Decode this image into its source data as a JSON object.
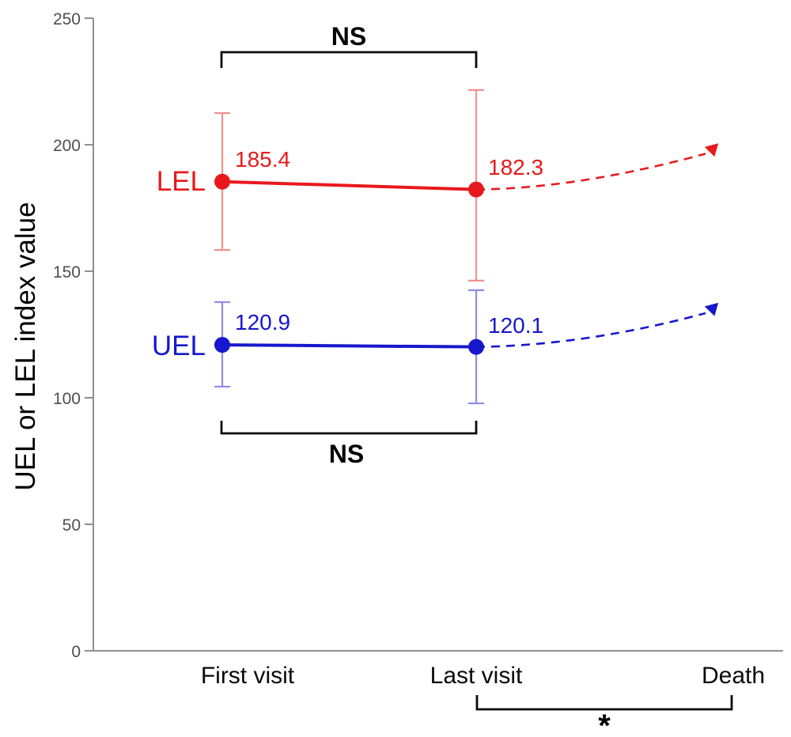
{
  "chart_data": {
    "type": "line",
    "title": "",
    "xlabel": "",
    "ylabel": "UEL or LEL index value",
    "categories": [
      "First visit",
      "Last visit",
      "Death"
    ],
    "ylim": [
      0,
      250
    ],
    "yticks": [
      "250",
      "200",
      "150",
      "100",
      "50",
      "0"
    ],
    "grid": false,
    "legend_position": "inline-left-of-first-point",
    "series": [
      {
        "name": "LEL",
        "color": "#e8191d",
        "error_bar_color": "#f4918f",
        "marker": "filled-circle",
        "points": [
          {
            "x": "First visit",
            "value": 185.4,
            "label": "185.4",
            "error_low": 158.4,
            "error_high": 212.5
          },
          {
            "x": "Last visit",
            "value": 182.3,
            "label": "182.3",
            "error_low": 146.3,
            "error_high": 221.6
          }
        ],
        "projection": {
          "to": "Death",
          "style": "dashed",
          "end_value": 198,
          "marker": "filled-arrowhead"
        }
      },
      {
        "name": "UEL",
        "color": "#1717cd",
        "error_bar_color": "#8d8de8",
        "marker": "filled-circle",
        "points": [
          {
            "x": "First visit",
            "value": 120.9,
            "label": "120.9",
            "error_low": 104.4,
            "error_high": 137.8
          },
          {
            "x": "Last visit",
            "value": 120.1,
            "label": "120.1",
            "error_low": 97.8,
            "error_high": 142.5
          }
        ],
        "projection": {
          "to": "Death",
          "style": "dashed",
          "end_value": 135,
          "marker": "filled-arrowhead"
        }
      }
    ],
    "annotations": [
      {
        "label": "NS",
        "from": "First visit",
        "to": "Last visit",
        "position": "top"
      },
      {
        "label": "NS",
        "from": "First visit",
        "to": "Last visit",
        "position": "bottom"
      },
      {
        "label": "*",
        "from": "Last visit",
        "to": "Death",
        "position": "below-axis"
      }
    ]
  }
}
